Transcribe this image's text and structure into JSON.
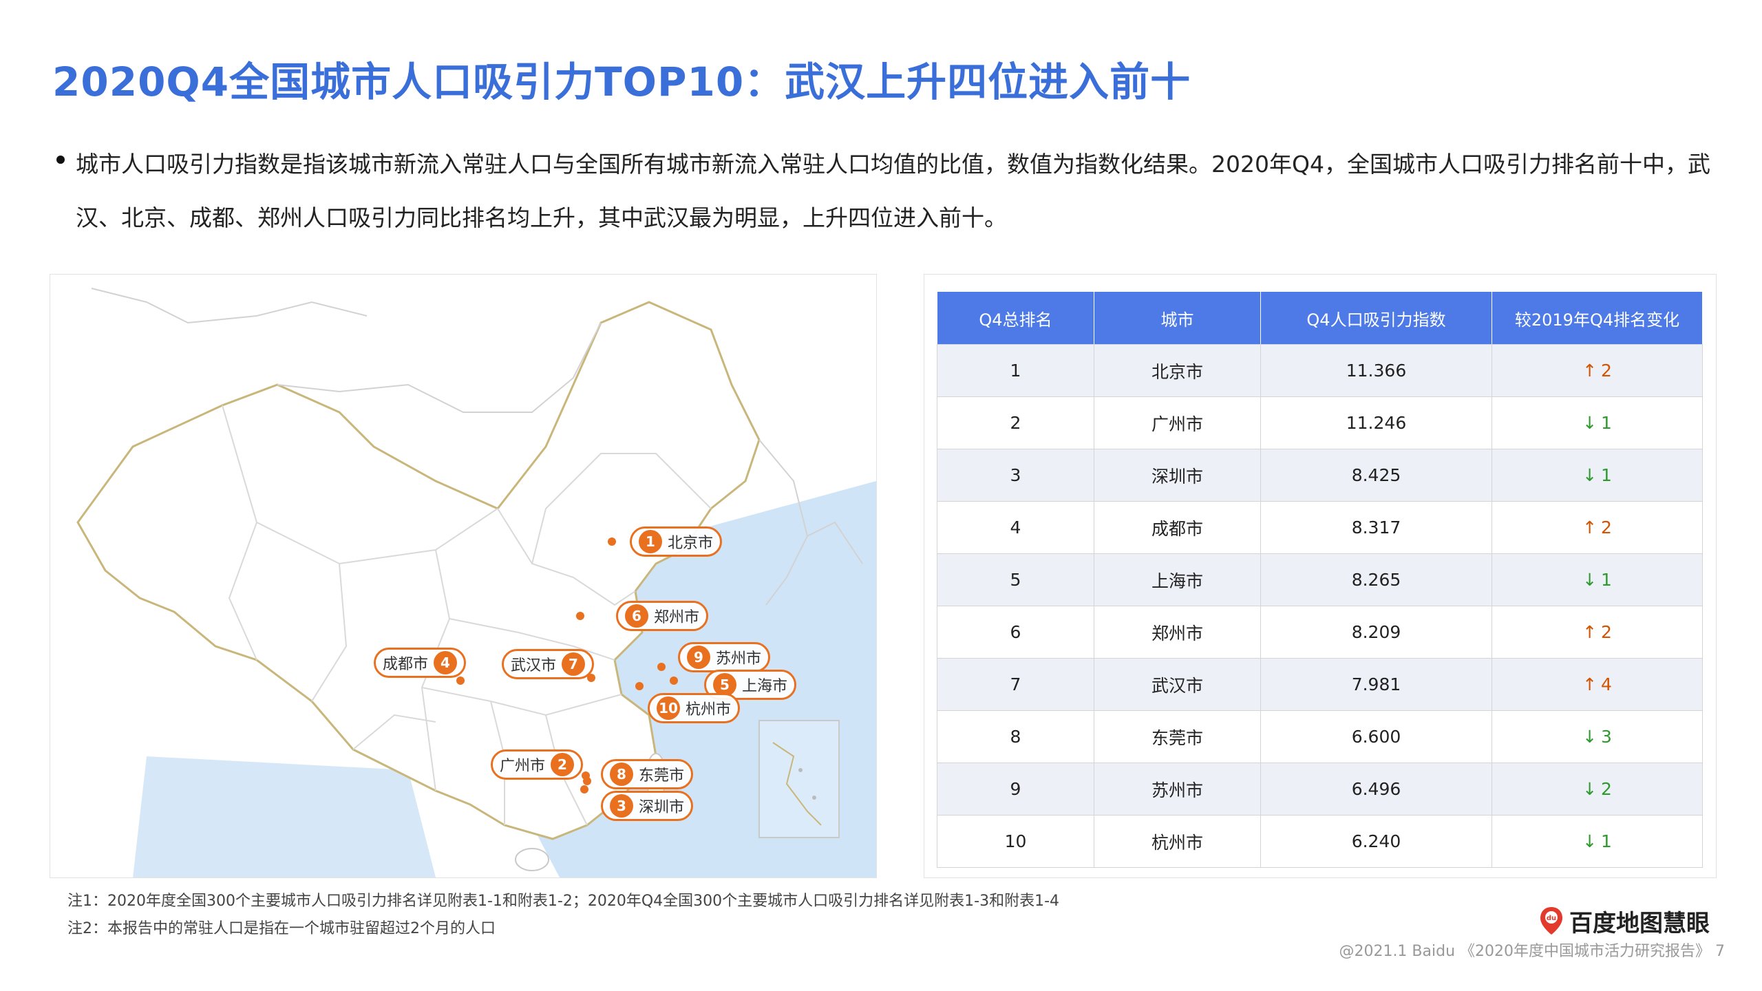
{
  "title": "2020Q4全国城市人口吸引力TOP10：武汉上升四位进入前十",
  "bullet": "城市人口吸引力指数是指该城市新流入常驻人口与全国所有城市新流入常驻人口均值的比值，数值为指数化结果。2020年Q4，全国城市人口吸引力排名前十中，武汉、北京、成都、郑州人口吸引力同比排名均上升，其中武汉最为明显，上升四位进入前十。",
  "map": {
    "markers": [
      {
        "rank": "1",
        "city": "北京市"
      },
      {
        "rank": "6",
        "city": "郑州市"
      },
      {
        "rank": "4",
        "city": "成都市"
      },
      {
        "rank": "7",
        "city": "武汉市"
      },
      {
        "rank": "9",
        "city": "苏州市"
      },
      {
        "rank": "5",
        "city": "上海市"
      },
      {
        "rank": "10",
        "city": "杭州市"
      },
      {
        "rank": "2",
        "city": "广州市"
      },
      {
        "rank": "8",
        "city": "东莞市"
      },
      {
        "rank": "3",
        "city": "深圳市"
      }
    ],
    "colors": {
      "marker": "#e8701f",
      "sea": "#cfe4f7",
      "land": "#ffffff",
      "border": "#cfcfcf",
      "province": "#c9b67a"
    }
  },
  "table": {
    "headers": [
      "Q4总排名",
      "城市",
      "Q4人口吸引力指数",
      "较2019年Q4排名变化"
    ],
    "rows": [
      {
        "rank": "1",
        "city": "北京市",
        "index": "11.366",
        "arrow": "↑",
        "change": "2",
        "dir": "up"
      },
      {
        "rank": "2",
        "city": "广州市",
        "index": "11.246",
        "arrow": "↓",
        "change": "1",
        "dir": "down"
      },
      {
        "rank": "3",
        "city": "深圳市",
        "index": "8.425",
        "arrow": "↓",
        "change": "1",
        "dir": "down"
      },
      {
        "rank": "4",
        "city": "成都市",
        "index": "8.317",
        "arrow": "↑",
        "change": "2",
        "dir": "up"
      },
      {
        "rank": "5",
        "city": "上海市",
        "index": "8.265",
        "arrow": "↓",
        "change": "1",
        "dir": "down"
      },
      {
        "rank": "6",
        "city": "郑州市",
        "index": "8.209",
        "arrow": "↑",
        "change": "2",
        "dir": "up"
      },
      {
        "rank": "7",
        "city": "武汉市",
        "index": "7.981",
        "arrow": "↑",
        "change": "4",
        "dir": "up"
      },
      {
        "rank": "8",
        "city": "东莞市",
        "index": "6.600",
        "arrow": "↓",
        "change": "3",
        "dir": "down"
      },
      {
        "rank": "9",
        "city": "苏州市",
        "index": "6.496",
        "arrow": "↓",
        "change": "2",
        "dir": "down"
      },
      {
        "rank": "10",
        "city": "杭州市",
        "index": "6.240",
        "arrow": "↓",
        "change": "1",
        "dir": "down"
      }
    ]
  },
  "notes": [
    "注1：2020年度全国300个主要城市人口吸引力排名详见附表1-1和附表1-2；2020年Q4全国300个主要城市人口吸引力排名详见附表1-3和附表1-4",
    "注2：本报告中的常驻人口是指在一个城市驻留超过2个月的人口"
  ],
  "logo": {
    "badge": "du",
    "text": "百度地图慧眼"
  },
  "footer": "@2021.1 Baidu 《2020年度中国城市活力研究报告》 7"
}
